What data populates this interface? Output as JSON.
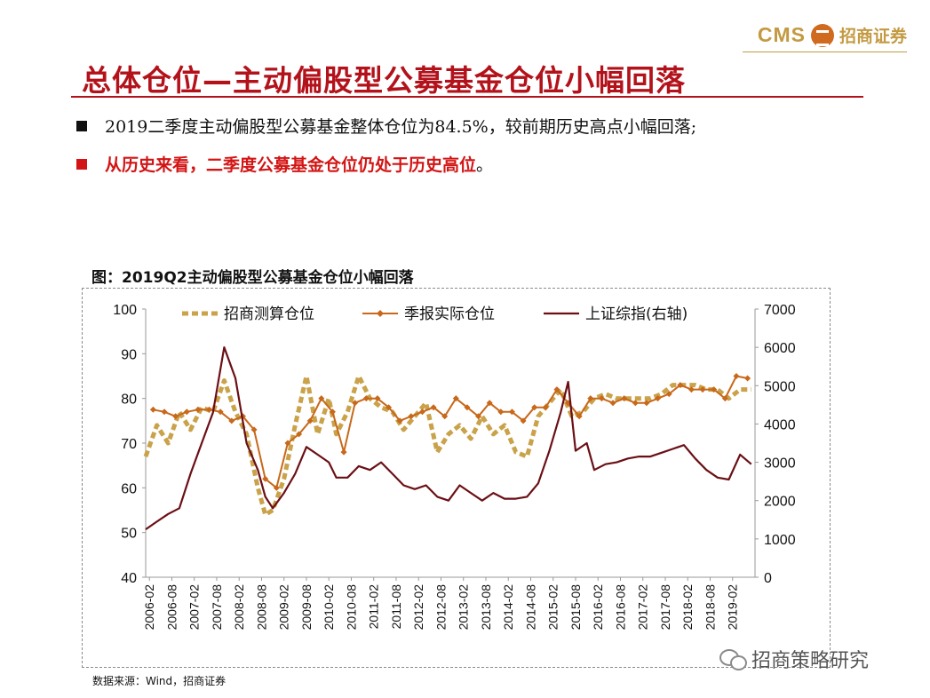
{
  "header": {
    "brand_cms": "CMS",
    "brand_name": "招商证券",
    "title": "总体仓位—主动偏股型公募基金仓位小幅回落"
  },
  "bullets": [
    {
      "text": "2019二季度主动偏股型公募基金整体仓位为84.5%，较前期历史高点小幅回落;",
      "tail": ""
    },
    {
      "text": "从历史来看，二季度公募基金仓位仍处于历史高位",
      "tail": "。"
    }
  ],
  "figure": {
    "title": "图：2019Q2主动偏股型公募基金仓位小幅回落",
    "source": "数据来源：Wind，招商证券"
  },
  "watermark": {
    "text": "招商策略研究"
  },
  "colors": {
    "brand": "#c39a42",
    "title_red": "#b3121b",
    "estimate": "#c9a24a",
    "quarterly": "#c8681a",
    "index": "#6b0f15"
  },
  "chart_data": {
    "type": "line",
    "x": [
      "2006-02",
      "2006-08",
      "2007-02",
      "2007-08",
      "2008-02",
      "2008-08",
      "2009-02",
      "2009-08",
      "2010-02",
      "2010-08",
      "2011-02",
      "2011-08",
      "2012-02",
      "2012-08",
      "2013-02",
      "2013-08",
      "2014-02",
      "2014-08",
      "2015-02",
      "2015-08",
      "2016-02",
      "2016-08",
      "2017-02",
      "2017-08",
      "2018-02",
      "2018-08",
      "2019-02"
    ],
    "x_range": [
      "2006-01",
      "2019-08"
    ],
    "yleft": {
      "min": 40,
      "max": 100,
      "ticks": [
        "100",
        "90",
        "80",
        "70",
        "60",
        "50",
        "40"
      ]
    },
    "yright": {
      "min": 0,
      "max": 7000,
      "ticks": [
        "7000",
        "6000",
        "5000",
        "4000",
        "3000",
        "2000",
        "1000",
        "0"
      ]
    },
    "legend_position": "top",
    "series": [
      {
        "name": "招商测算仓位",
        "axis": "left",
        "style": "dashed",
        "points": [
          [
            "2006-01",
            67
          ],
          [
            "2006-04",
            74
          ],
          [
            "2006-07",
            70
          ],
          [
            "2006-10",
            77
          ],
          [
            "2007-01",
            73
          ],
          [
            "2007-04",
            78
          ],
          [
            "2007-07",
            77
          ],
          [
            "2007-10",
            84
          ],
          [
            "2008-01",
            77
          ],
          [
            "2008-04",
            72
          ],
          [
            "2008-07",
            60
          ],
          [
            "2008-09",
            54
          ],
          [
            "2008-11",
            55
          ],
          [
            "2009-02",
            62
          ],
          [
            "2009-05",
            74
          ],
          [
            "2009-08",
            85
          ],
          [
            "2009-11",
            72
          ],
          [
            "2010-02",
            80
          ],
          [
            "2010-04",
            72
          ],
          [
            "2010-07",
            77
          ],
          [
            "2010-10",
            85
          ],
          [
            "2011-01",
            80
          ],
          [
            "2011-04",
            78
          ],
          [
            "2011-07",
            77
          ],
          [
            "2011-10",
            73
          ],
          [
            "2012-01",
            76
          ],
          [
            "2012-04",
            79
          ],
          [
            "2012-07",
            68
          ],
          [
            "2012-10",
            72
          ],
          [
            "2013-01",
            74
          ],
          [
            "2013-04",
            71
          ],
          [
            "2013-07",
            76
          ],
          [
            "2013-10",
            72
          ],
          [
            "2014-01",
            74
          ],
          [
            "2014-04",
            68
          ],
          [
            "2014-07",
            67
          ],
          [
            "2014-10",
            76
          ],
          [
            "2015-01",
            79
          ],
          [
            "2015-04",
            82
          ],
          [
            "2015-07",
            76
          ],
          [
            "2015-10",
            77
          ],
          [
            "2016-01",
            80
          ],
          [
            "2016-04",
            81
          ],
          [
            "2016-07",
            80
          ],
          [
            "2016-10",
            80
          ],
          [
            "2017-01",
            80
          ],
          [
            "2017-04",
            80
          ],
          [
            "2017-07",
            81
          ],
          [
            "2017-10",
            83
          ],
          [
            "2018-01",
            83
          ],
          [
            "2018-04",
            83
          ],
          [
            "2018-07",
            82
          ],
          [
            "2018-10",
            82
          ],
          [
            "2019-01",
            80
          ],
          [
            "2019-04",
            82
          ],
          [
            "2019-07",
            82
          ]
        ]
      },
      {
        "name": "季报实际仓位",
        "axis": "left",
        "style": "solid-diamond",
        "points": [
          [
            "2006-03",
            77.5
          ],
          [
            "2006-06",
            77
          ],
          [
            "2006-09",
            76
          ],
          [
            "2006-12",
            77
          ],
          [
            "2007-03",
            77.5
          ],
          [
            "2007-06",
            77.5
          ],
          [
            "2007-09",
            77
          ],
          [
            "2007-12",
            75
          ],
          [
            "2008-03",
            76
          ],
          [
            "2008-06",
            73
          ],
          [
            "2008-09",
            62
          ],
          [
            "2008-12",
            60
          ],
          [
            "2009-03",
            70
          ],
          [
            "2009-06",
            72
          ],
          [
            "2009-09",
            75
          ],
          [
            "2009-12",
            80
          ],
          [
            "2010-03",
            77
          ],
          [
            "2010-06",
            68
          ],
          [
            "2010-09",
            79
          ],
          [
            "2010-12",
            80
          ],
          [
            "2011-03",
            80
          ],
          [
            "2011-06",
            78
          ],
          [
            "2011-09",
            75
          ],
          [
            "2011-12",
            76
          ],
          [
            "2012-03",
            77
          ],
          [
            "2012-06",
            78
          ],
          [
            "2012-09",
            76
          ],
          [
            "2012-12",
            80
          ],
          [
            "2013-03",
            78
          ],
          [
            "2013-06",
            76
          ],
          [
            "2013-09",
            79
          ],
          [
            "2013-12",
            77
          ],
          [
            "2014-03",
            77
          ],
          [
            "2014-06",
            75
          ],
          [
            "2014-09",
            78
          ],
          [
            "2014-12",
            78
          ],
          [
            "2015-03",
            82
          ],
          [
            "2015-06",
            79
          ],
          [
            "2015-09",
            76
          ],
          [
            "2015-12",
            80
          ],
          [
            "2016-03",
            80
          ],
          [
            "2016-06",
            79
          ],
          [
            "2016-09",
            80
          ],
          [
            "2016-12",
            79
          ],
          [
            "2017-03",
            79
          ],
          [
            "2017-06",
            80
          ],
          [
            "2017-09",
            81
          ],
          [
            "2017-12",
            83
          ],
          [
            "2018-03",
            82
          ],
          [
            "2018-06",
            82
          ],
          [
            "2018-09",
            82
          ],
          [
            "2018-12",
            80
          ],
          [
            "2019-03",
            85
          ],
          [
            "2019-06",
            84.5
          ]
        ]
      },
      {
        "name": "上证综指(右轴)",
        "axis": "right",
        "style": "solid",
        "points": [
          [
            "2006-01",
            1250
          ],
          [
            "2006-04",
            1450
          ],
          [
            "2006-07",
            1650
          ],
          [
            "2006-10",
            1800
          ],
          [
            "2007-01",
            2700
          ],
          [
            "2007-04",
            3500
          ],
          [
            "2007-07",
            4300
          ],
          [
            "2007-10",
            6000
          ],
          [
            "2008-01",
            5200
          ],
          [
            "2008-04",
            3500
          ],
          [
            "2008-07",
            2800
          ],
          [
            "2008-09",
            2100
          ],
          [
            "2008-11",
            1800
          ],
          [
            "2009-02",
            2200
          ],
          [
            "2009-05",
            2700
          ],
          [
            "2009-08",
            3400
          ],
          [
            "2009-11",
            3200
          ],
          [
            "2010-02",
            3000
          ],
          [
            "2010-04",
            2600
          ],
          [
            "2010-07",
            2600
          ],
          [
            "2010-10",
            2900
          ],
          [
            "2011-01",
            2800
          ],
          [
            "2011-04",
            3000
          ],
          [
            "2011-07",
            2700
          ],
          [
            "2011-10",
            2400
          ],
          [
            "2012-01",
            2300
          ],
          [
            "2012-04",
            2400
          ],
          [
            "2012-07",
            2100
          ],
          [
            "2012-10",
            2000
          ],
          [
            "2013-01",
            2400
          ],
          [
            "2013-04",
            2200
          ],
          [
            "2013-07",
            2000
          ],
          [
            "2013-10",
            2200
          ],
          [
            "2014-01",
            2050
          ],
          [
            "2014-04",
            2050
          ],
          [
            "2014-07",
            2100
          ],
          [
            "2014-10",
            2450
          ],
          [
            "2015-01",
            3300
          ],
          [
            "2015-04",
            4300
          ],
          [
            "2015-06",
            5100
          ],
          [
            "2015-08",
            3300
          ],
          [
            "2015-11",
            3500
          ],
          [
            "2016-01",
            2800
          ],
          [
            "2016-04",
            2950
          ],
          [
            "2016-07",
            3000
          ],
          [
            "2016-10",
            3100
          ],
          [
            "2017-01",
            3150
          ],
          [
            "2017-04",
            3150
          ],
          [
            "2017-07",
            3250
          ],
          [
            "2017-10",
            3350
          ],
          [
            "2018-01",
            3450
          ],
          [
            "2018-04",
            3100
          ],
          [
            "2018-07",
            2800
          ],
          [
            "2018-10",
            2600
          ],
          [
            "2019-01",
            2550
          ],
          [
            "2019-04",
            3200
          ],
          [
            "2019-07",
            2950
          ]
        ]
      }
    ]
  }
}
